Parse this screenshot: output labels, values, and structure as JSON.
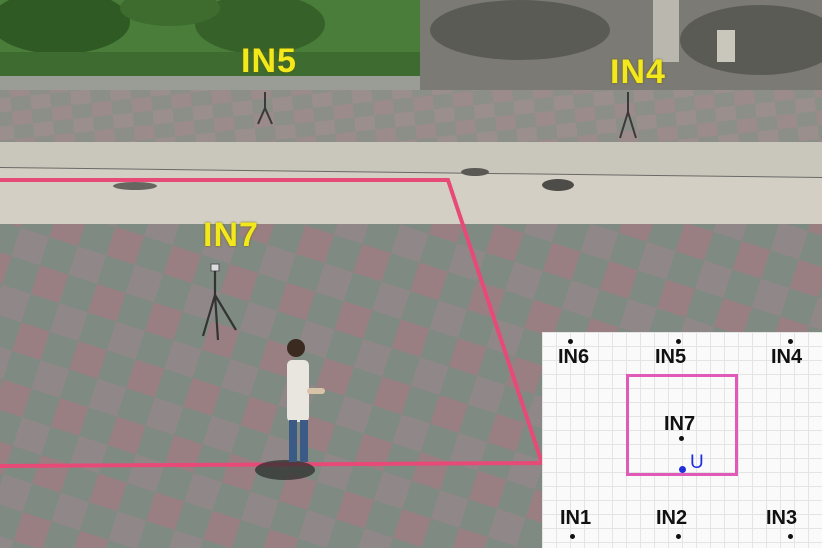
{
  "scene": {
    "labels": {
      "in5": "IN5",
      "in4": "IN4",
      "in7": "IN7"
    },
    "zone_color": "#e84a78",
    "label_color": "#f2e81c"
  },
  "minimap": {
    "nodes": {
      "in6": "IN6",
      "in5": "IN5",
      "in4": "IN4",
      "in7": "IN7",
      "in1": "IN1",
      "in2": "IN2",
      "in3": "IN3"
    },
    "user_label": "U",
    "zone_color": "#e05ab7",
    "user_color": "#1f2fdc"
  }
}
